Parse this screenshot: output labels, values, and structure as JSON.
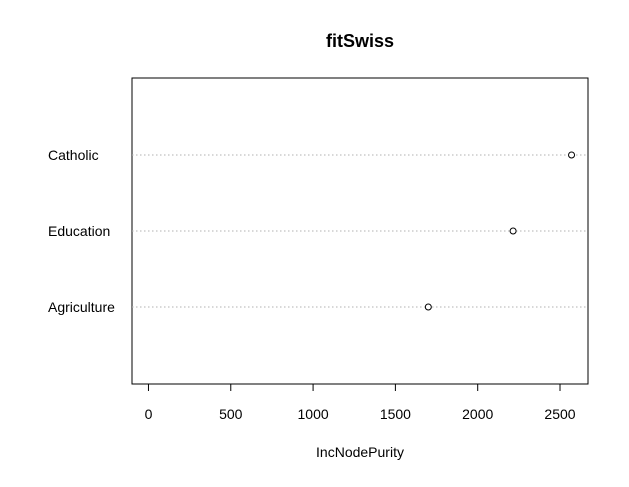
{
  "chart_data": {
    "type": "scatter",
    "title": "fitSwiss",
    "xlabel": "IncNodePurity",
    "ylabel": "",
    "categories": [
      "Catholic",
      "Education",
      "Agriculture"
    ],
    "values": [
      2570,
      2215,
      1700
    ],
    "xlim": [
      -100,
      2670
    ],
    "xticks": [
      0,
      500,
      1000,
      1500,
      2000,
      2500
    ],
    "xtick_labels": [
      "0",
      "500",
      "1000",
      "1500",
      "2000",
      "2500"
    ]
  }
}
